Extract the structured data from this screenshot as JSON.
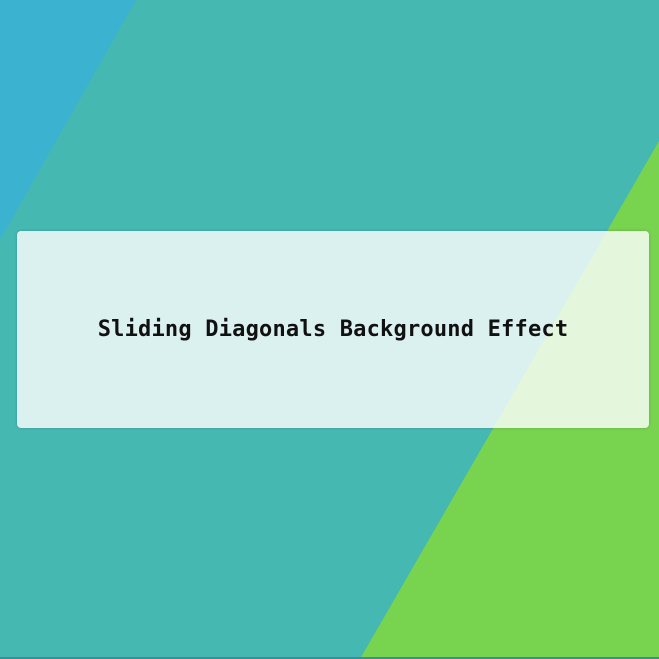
{
  "page": {
    "title": "Sliding Diagonals Background Effect"
  },
  "background": {
    "colors": {
      "base": "#46b8b2",
      "left_diagonal": "#3bb2cf",
      "right_diagonal": "#78d34f"
    }
  }
}
